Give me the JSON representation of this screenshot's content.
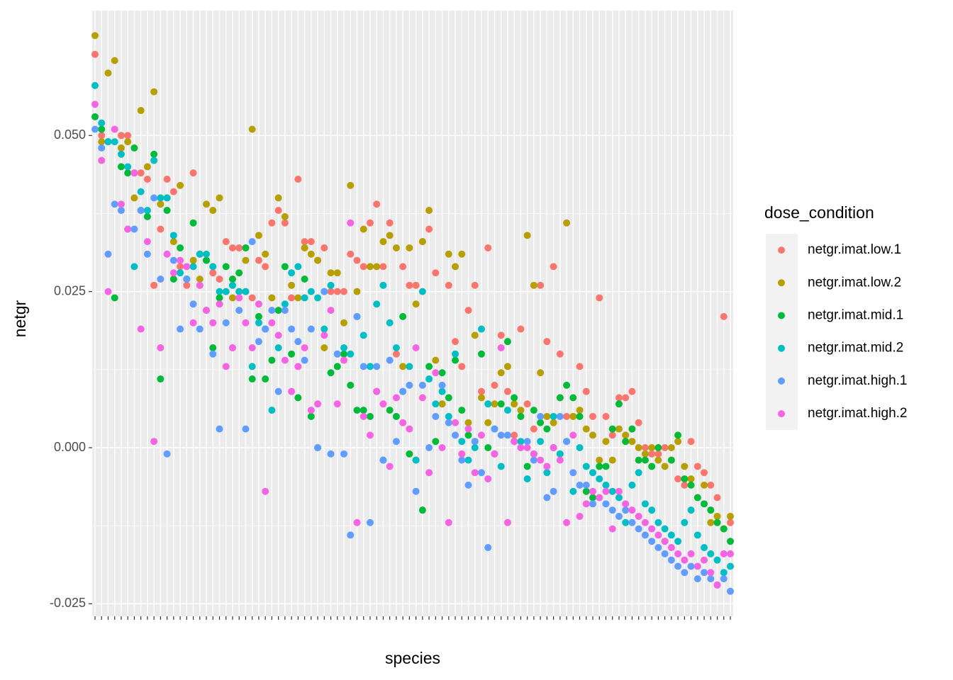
{
  "chart_data": {
    "type": "scatter",
    "x_label": "species",
    "y_label": "netgr",
    "legend_title": "dose_condition",
    "legend_position": "right",
    "grid": true,
    "categories": [
      null,
      null,
      null,
      null,
      null,
      null,
      null,
      null,
      null,
      null,
      null,
      null,
      null,
      null,
      null,
      null,
      null,
      null,
      null,
      null,
      null,
      null,
      null,
      null,
      null,
      null,
      null,
      null,
      null,
      null,
      null,
      null,
      null,
      null,
      null,
      null,
      null,
      null,
      null,
      null,
      null,
      null,
      null,
      null,
      null,
      null,
      null,
      null,
      null,
      null,
      null,
      null,
      null,
      null,
      null,
      null,
      null,
      null,
      null,
      null,
      null,
      null,
      null,
      null,
      null,
      null,
      null,
      null,
      null,
      null,
      null,
      null,
      null,
      null,
      null,
      null,
      null,
      null,
      null,
      null,
      null,
      null,
      null,
      null,
      null,
      null,
      null,
      null,
      null,
      null,
      null,
      null,
      null,
      null,
      null,
      null,
      null,
      null
    ],
    "ylim": [
      -0.027,
      0.07
    ],
    "yticks": [
      -0.025,
      {
        "value": 0,
        "label": "0.000"
      },
      0.025,
      {
        "value": 0.05,
        "label": "0.050"
      }
    ],
    "series": [
      {
        "name": "netgr.imat.low.1",
        "color": "#F8766D",
        "values": [
          0.063,
          0.05,
          0.049,
          0.051,
          0.05,
          0.05,
          0.044,
          0.044,
          0.043,
          0.026,
          0.035,
          0.043,
          0.041,
          0.029,
          0.026,
          0.044,
          0.026,
          0.03,
          0.028,
          0.027,
          0.033,
          0.032,
          0.032,
          0.025,
          0.024,
          0.03,
          0.029,
          0.036,
          0.038,
          0.036,
          0.024,
          0.043,
          0.033,
          0.033,
          0.03,
          0.032,
          0.025,
          0.025,
          0.025,
          0.031,
          0.03,
          0.029,
          0.036,
          0.039,
          0.029,
          0.036,
          0.015,
          0.029,
          0.026,
          0.026,
          0.033,
          0.035,
          0.028,
          0.007,
          0.026,
          0.017,
          0.013,
          0.022,
          0.026,
          0.009,
          0.032,
          0.01,
          0.018,
          0.009,
          0.002,
          0.019,
          0.007,
          0.003,
          0.026,
          0.017,
          0.029,
          0.015,
          0.005,
          0.005,
          0.013,
          0.009,
          0.005,
          0.024,
          0.005,
          0.002,
          0.008,
          0.008,
          0.009,
          0.004,
          0.0,
          -0.001,
          -0.001,
          0.0,
          -0.002,
          -0.005,
          -0.006,
          0.001,
          -0.003,
          -0.004,
          -0.006,
          -0.008,
          0.021,
          -0.012
        ]
      },
      {
        "name": "netgr.imat.low.2",
        "color": "#B79F00",
        "values": [
          0.066,
          0.049,
          0.06,
          0.062,
          0.048,
          0.049,
          0.04,
          0.054,
          0.045,
          0.057,
          0.039,
          0.04,
          0.033,
          0.042,
          0.027,
          0.03,
          0.027,
          0.039,
          0.038,
          0.04,
          0.025,
          0.024,
          0.025,
          0.03,
          0.051,
          0.034,
          0.031,
          0.024,
          0.04,
          0.037,
          0.026,
          0.024,
          0.032,
          0.031,
          0.03,
          0.016,
          0.028,
          0.028,
          0.02,
          0.042,
          0.025,
          0.035,
          0.029,
          0.029,
          0.033,
          0.034,
          0.032,
          0.013,
          0.032,
          0.023,
          0.033,
          0.038,
          0.014,
          0.007,
          0.031,
          0.029,
          0.031,
          0.004,
          0.018,
          0.008,
          0.004,
          0.007,
          0.012,
          0.013,
          0.007,
          0.006,
          0.034,
          0.026,
          0.012,
          0.005,
          0.004,
          0.008,
          0.036,
          0.005,
          0.006,
          0.003,
          0.002,
          -0.002,
          0.001,
          -0.002,
          0.003,
          0.002,
          0.001,
          0.0,
          -0.001,
          0.0,
          -0.002,
          -0.003,
          0.0,
          0.001,
          -0.003,
          -0.005,
          -0.008,
          -0.006,
          -0.012,
          -0.011,
          -0.013,
          -0.011
        ]
      },
      {
        "name": "netgr.imat.mid.1",
        "color": "#00BA38",
        "values": [
          0.053,
          0.051,
          0.049,
          0.024,
          0.045,
          0.044,
          0.048,
          0.038,
          0.037,
          0.047,
          0.011,
          0.038,
          0.027,
          0.032,
          0.027,
          0.036,
          0.031,
          0.03,
          0.016,
          0.024,
          0.029,
          0.027,
          0.028,
          0.032,
          0.011,
          0.021,
          0.011,
          0.014,
          0.022,
          0.029,
          0.015,
          0.008,
          0.027,
          0.005,
          0.0,
          0.025,
          0.012,
          0.013,
          0.015,
          0.01,
          0.006,
          0.006,
          0.005,
          0.009,
          -0.002,
          0.006,
          0.005,
          0.021,
          -0.001,
          -0.002,
          -0.01,
          0.013,
          0.001,
          0.012,
          0.008,
          0.014,
          0.006,
          0.002,
          0.001,
          0.015,
          0.0,
          -0.001,
          0.007,
          0.017,
          0.008,
          0.005,
          -0.003,
          0.006,
          0.004,
          0.003,
          0.0,
          0.008,
          0.01,
          0.008,
          0.005,
          -0.007,
          -0.008,
          -0.003,
          -0.003,
          0.003,
          0.007,
          0.001,
          0.003,
          -0.002,
          -0.002,
          -0.003,
          0.0,
          -0.015,
          -0.002,
          0.002,
          -0.005,
          -0.006,
          -0.008,
          -0.009,
          -0.01,
          -0.012,
          -0.013,
          -0.015
        ]
      },
      {
        "name": "netgr.imat.mid.2",
        "color": "#00BFC4",
        "values": [
          0.058,
          0.052,
          0.049,
          0.049,
          0.047,
          0.045,
          0.029,
          0.041,
          0.038,
          0.046,
          0.04,
          0.04,
          0.034,
          0.028,
          0.027,
          0.029,
          0.031,
          0.031,
          0.029,
          0.025,
          0.025,
          0.026,
          0.025,
          0.025,
          0.013,
          0.02,
          0.019,
          0.006,
          0.016,
          0.023,
          0.028,
          0.029,
          0.024,
          0.025,
          0.024,
          0.019,
          0.026,
          0.015,
          0.016,
          0.015,
          0.021,
          0.018,
          0.013,
          0.023,
          0.026,
          0.02,
          0.016,
          0.009,
          0.013,
          -0.002,
          0.025,
          0.011,
          0.007,
          0.009,
          0.005,
          0.015,
          0.001,
          -0.002,
          0.0,
          0.019,
          0.007,
          0.003,
          -0.003,
          0.006,
          0.001,
          0.001,
          -0.005,
          -0.001,
          0.001,
          -0.004,
          0.005,
          -0.001,
          0.001,
          -0.007,
          0.0,
          -0.003,
          -0.004,
          -0.005,
          -0.006,
          -0.007,
          -0.008,
          -0.012,
          -0.006,
          -0.004,
          -0.009,
          -0.01,
          -0.012,
          -0.013,
          -0.014,
          -0.015,
          -0.012,
          -0.01,
          -0.014,
          -0.016,
          -0.017,
          -0.018,
          -0.02,
          -0.019
        ]
      },
      {
        "name": "netgr.imat.high.1",
        "color": "#619CFF",
        "values": [
          0.051,
          0.048,
          0.031,
          0.039,
          0.038,
          0.035,
          0.035,
          0.038,
          0.031,
          0.04,
          0.027,
          -0.001,
          0.03,
          0.019,
          0.027,
          0.023,
          0.019,
          0.022,
          0.015,
          0.003,
          0.02,
          0.016,
          0.022,
          0.003,
          0.033,
          0.017,
          0.019,
          0.022,
          0.009,
          0.022,
          0.019,
          0.017,
          0.014,
          0.019,
          0.0,
          0.025,
          -0.001,
          0.015,
          -0.001,
          -0.014,
          0.021,
          0.013,
          -0.012,
          0.013,
          -0.002,
          0.014,
          0.001,
          0.009,
          0.01,
          -0.007,
          0.01,
          0.0,
          0.005,
          0.01,
          0.004,
          0.002,
          -0.002,
          -0.006,
          0.001,
          -0.004,
          -0.016,
          0.003,
          0.002,
          0.002,
          0.001,
          0.0,
          0.001,
          -0.002,
          0.005,
          -0.008,
          -0.007,
          0.005,
          0.001,
          -0.004,
          -0.006,
          -0.006,
          -0.009,
          -0.008,
          -0.009,
          -0.01,
          -0.011,
          -0.01,
          -0.012,
          -0.013,
          -0.014,
          -0.015,
          -0.016,
          -0.017,
          -0.018,
          -0.019,
          -0.02,
          -0.019,
          -0.021,
          -0.02,
          -0.021,
          -0.022,
          -0.021,
          -0.023
        ]
      },
      {
        "name": "netgr.imat.high.2",
        "color": "#F564E3",
        "values": [
          0.055,
          0.046,
          0.025,
          0.051,
          0.039,
          0.035,
          0.044,
          0.019,
          0.033,
          0.001,
          0.016,
          0.031,
          0.028,
          0.03,
          0.029,
          0.02,
          0.026,
          0.022,
          0.02,
          0.023,
          0.013,
          0.016,
          0.024,
          0.02,
          0.016,
          0.023,
          -0.007,
          0.02,
          0.018,
          0.014,
          0.009,
          0.013,
          0.016,
          0.006,
          0.007,
          0.018,
          0.022,
          0.007,
          0.014,
          0.036,
          -0.012,
          0.005,
          0.002,
          0.009,
          0.007,
          -0.003,
          0.008,
          0.004,
          0.003,
          0.016,
          0.008,
          -0.004,
          0.012,
          0.0,
          -0.012,
          0.004,
          -0.001,
          0.003,
          -0.004,
          0.002,
          -0.005,
          -0.001,
          0.016,
          -0.012,
          0.001,
          0.0,
          0.0,
          -0.001,
          -0.002,
          -0.003,
          0.0,
          -0.002,
          -0.012,
          0.002,
          -0.011,
          -0.009,
          -0.007,
          -0.008,
          -0.007,
          -0.013,
          -0.007,
          -0.009,
          -0.01,
          -0.011,
          -0.012,
          -0.013,
          -0.014,
          -0.015,
          -0.016,
          -0.017,
          -0.018,
          -0.017,
          -0.019,
          -0.018,
          -0.02,
          -0.022,
          -0.017,
          -0.017
        ]
      }
    ]
  }
}
